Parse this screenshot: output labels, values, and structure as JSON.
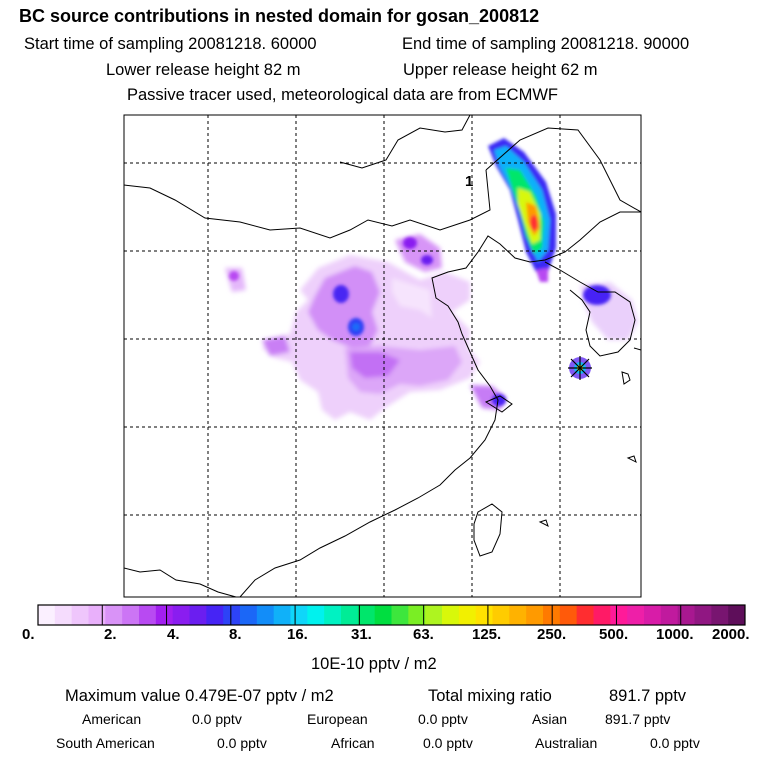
{
  "header": {
    "title": "BC  source contributions in nested domain for gosan_200812",
    "start_label": "Start time of sampling 20081218. 60000",
    "end_label": "End time of sampling 20081218. 90000",
    "lower_label": "Lower release height   82 m",
    "upper_label": "Upper release height   62 m",
    "note": "Passive tracer used, meteorological data are from ECMWF"
  },
  "map": {
    "marker_label": "1"
  },
  "colorbar": {
    "ticks": [
      "0.",
      "2.",
      "4.",
      "8.",
      "16.",
      "31.",
      "63.",
      "125.",
      "250.",
      "500.",
      "1000.",
      "2000."
    ],
    "unit": "10E-10 pptv / m2",
    "colors": [
      "#fbf0ff",
      "#f5dcfd",
      "#efc6fc",
      "#e9b0fb",
      "#d993f7",
      "#cc75f5",
      "#b84af2",
      "#a21ff0",
      "#8a1df0",
      "#6b1ef0",
      "#4624f5",
      "#2d43f7",
      "#1b67f7",
      "#128df9",
      "#10b1f9",
      "#0fd6f9",
      "#00f2ee",
      "#00f2c2",
      "#00ec96",
      "#00e66b",
      "#00de40",
      "#3de63d",
      "#7aee24",
      "#aef420",
      "#d8f80a",
      "#f2f000",
      "#ffe200",
      "#ffcc00",
      "#ffb200",
      "#ff9a00",
      "#ff7a00",
      "#ff5a0a",
      "#ff2d30",
      "#ff1a66",
      "#ff1a99",
      "#ee1fa8",
      "#d81ca8",
      "#c01a9e",
      "#a81890",
      "#901782",
      "#781570",
      "#5e0e5a"
    ]
  },
  "stats": {
    "max_label": "Maximum value  0.479E-07 pptv / m2",
    "total_label": "Total mixing ratio",
    "total_value": "891.7 pptv"
  },
  "regions": [
    {
      "name": "American",
      "value": "0.0 pptv"
    },
    {
      "name": "European",
      "value": "0.0 pptv"
    },
    {
      "name": "Asian",
      "value": "891.7 pptv"
    },
    {
      "name": "South American",
      "value": "0.0 pptv"
    },
    {
      "name": "African",
      "value": "0.0 pptv"
    },
    {
      "name": "Australian",
      "value": "0.0 pptv"
    }
  ]
}
